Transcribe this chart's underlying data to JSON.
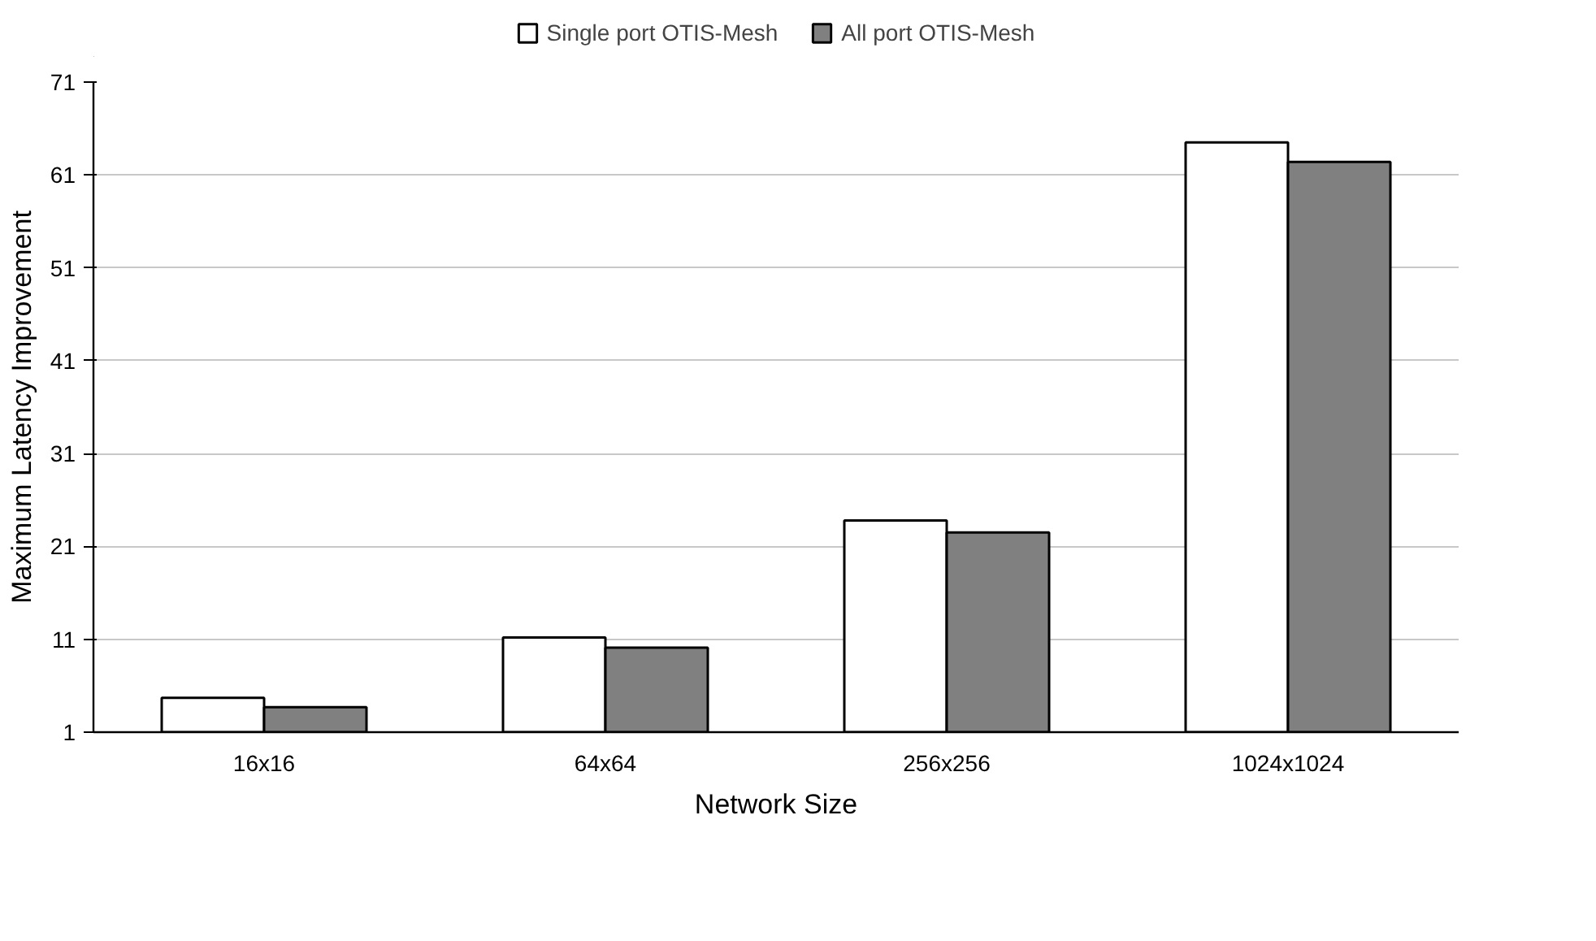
{
  "chart_data": {
    "type": "bar",
    "xlabel": "Network Size",
    "ylabel": "Maximum Latency Improvement",
    "categories": [
      "16x16",
      "64x64",
      "256x256",
      "1024x1024"
    ],
    "series": [
      {
        "name": "Single port OTIS-Mesh",
        "color": "#ffffff",
        "values": [
          4.7,
          11.2,
          23.8,
          64.5
        ]
      },
      {
        "name": "All port OTIS-Mesh",
        "color": "#808080",
        "values": [
          3.7,
          10.1,
          22.5,
          62.4
        ]
      }
    ],
    "ylim": [
      1,
      71
    ],
    "yticks": [
      1,
      11,
      21,
      31,
      41,
      51,
      61,
      71
    ],
    "grid": "y",
    "legend": "top"
  }
}
